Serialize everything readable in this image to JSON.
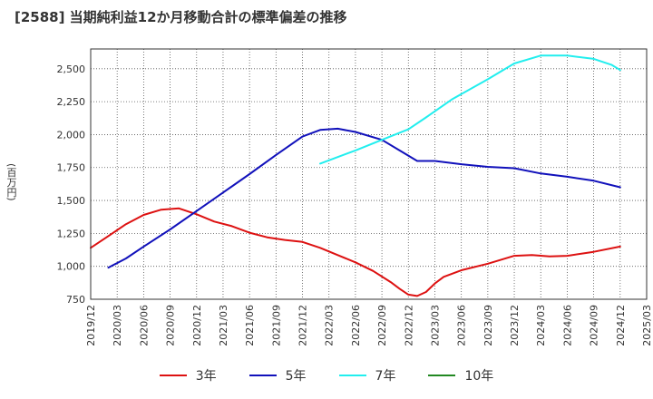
{
  "chart_data": {
    "type": "line",
    "title": "[2588]  当期純利益12か月移動合計の標準偏差の推移",
    "ylabel": "(百万円)",
    "xlabel": "",
    "ylim": [
      750,
      2650
    ],
    "yticks": [
      750,
      1000,
      1250,
      1500,
      1750,
      2000,
      2250,
      2500
    ],
    "ytick_labels": [
      "750",
      "1,000",
      "1,250",
      "1,500",
      "1,750",
      "2,000",
      "2,250",
      "2,500"
    ],
    "xticks": [
      "2019/12",
      "2020/03",
      "2020/06",
      "2020/09",
      "2020/12",
      "2021/03",
      "2021/06",
      "2021/09",
      "2021/12",
      "2022/03",
      "2022/06",
      "2022/09",
      "2022/12",
      "2023/03",
      "2023/06",
      "2023/09",
      "2023/12",
      "2024/03",
      "2024/06",
      "2024/09",
      "2024/12",
      "2025/03"
    ],
    "grid": true,
    "legend_position": "bottom",
    "series": [
      {
        "name": "3年",
        "color": "#dd1111",
        "points": [
          [
            "2019/12",
            1140
          ],
          [
            "2020/02",
            1230
          ],
          [
            "2020/04",
            1320
          ],
          [
            "2020/06",
            1390
          ],
          [
            "2020/08",
            1430
          ],
          [
            "2020/10",
            1440
          ],
          [
            "2020/12",
            1395
          ],
          [
            "2021/02",
            1340
          ],
          [
            "2021/04",
            1305
          ],
          [
            "2021/06",
            1255
          ],
          [
            "2021/08",
            1220
          ],
          [
            "2021/10",
            1200
          ],
          [
            "2021/12",
            1185
          ],
          [
            "2022/02",
            1140
          ],
          [
            "2022/04",
            1085
          ],
          [
            "2022/06",
            1030
          ],
          [
            "2022/08",
            965
          ],
          [
            "2022/10",
            880
          ],
          [
            "2022/11",
            830
          ],
          [
            "2022/12",
            785
          ],
          [
            "2023/01",
            775
          ],
          [
            "2023/02",
            805
          ],
          [
            "2023/03",
            870
          ],
          [
            "2023/04",
            920
          ],
          [
            "2023/06",
            970
          ],
          [
            "2023/09",
            1020
          ],
          [
            "2023/12",
            1080
          ],
          [
            "2024/02",
            1085
          ],
          [
            "2024/04",
            1075
          ],
          [
            "2024/06",
            1080
          ],
          [
            "2024/09",
            1110
          ],
          [
            "2024/12",
            1150
          ]
        ]
      },
      {
        "name": "5年",
        "color": "#1111bb",
        "points": [
          [
            "2020/02",
            990
          ],
          [
            "2020/04",
            1060
          ],
          [
            "2020/06",
            1150
          ],
          [
            "2020/09",
            1280
          ],
          [
            "2020/12",
            1420
          ],
          [
            "2021/03",
            1560
          ],
          [
            "2021/06",
            1700
          ],
          [
            "2021/09",
            1845
          ],
          [
            "2021/12",
            1985
          ],
          [
            "2022/02",
            2035
          ],
          [
            "2022/04",
            2045
          ],
          [
            "2022/06",
            2020
          ],
          [
            "2022/09",
            1960
          ],
          [
            "2022/11",
            1880
          ],
          [
            "2023/01",
            1800
          ],
          [
            "2023/03",
            1800
          ],
          [
            "2023/06",
            1775
          ],
          [
            "2023/09",
            1755
          ],
          [
            "2023/12",
            1745
          ],
          [
            "2024/03",
            1705
          ],
          [
            "2024/06",
            1680
          ],
          [
            "2024/09",
            1650
          ],
          [
            "2024/12",
            1600
          ]
        ]
      },
      {
        "name": "7年",
        "color": "#22eeee",
        "points": [
          [
            "2022/02",
            1780
          ],
          [
            "2022/06",
            1880
          ],
          [
            "2022/09",
            1960
          ],
          [
            "2022/12",
            2040
          ],
          [
            "2023/02",
            2130
          ],
          [
            "2023/05",
            2270
          ],
          [
            "2023/09",
            2420
          ],
          [
            "2023/12",
            2540
          ],
          [
            "2024/03",
            2600
          ],
          [
            "2024/06",
            2600
          ],
          [
            "2024/09",
            2575
          ],
          [
            "2024/11",
            2530
          ],
          [
            "2024/12",
            2490
          ]
        ]
      },
      {
        "name": "10年",
        "color": "#228822",
        "points": []
      }
    ]
  }
}
